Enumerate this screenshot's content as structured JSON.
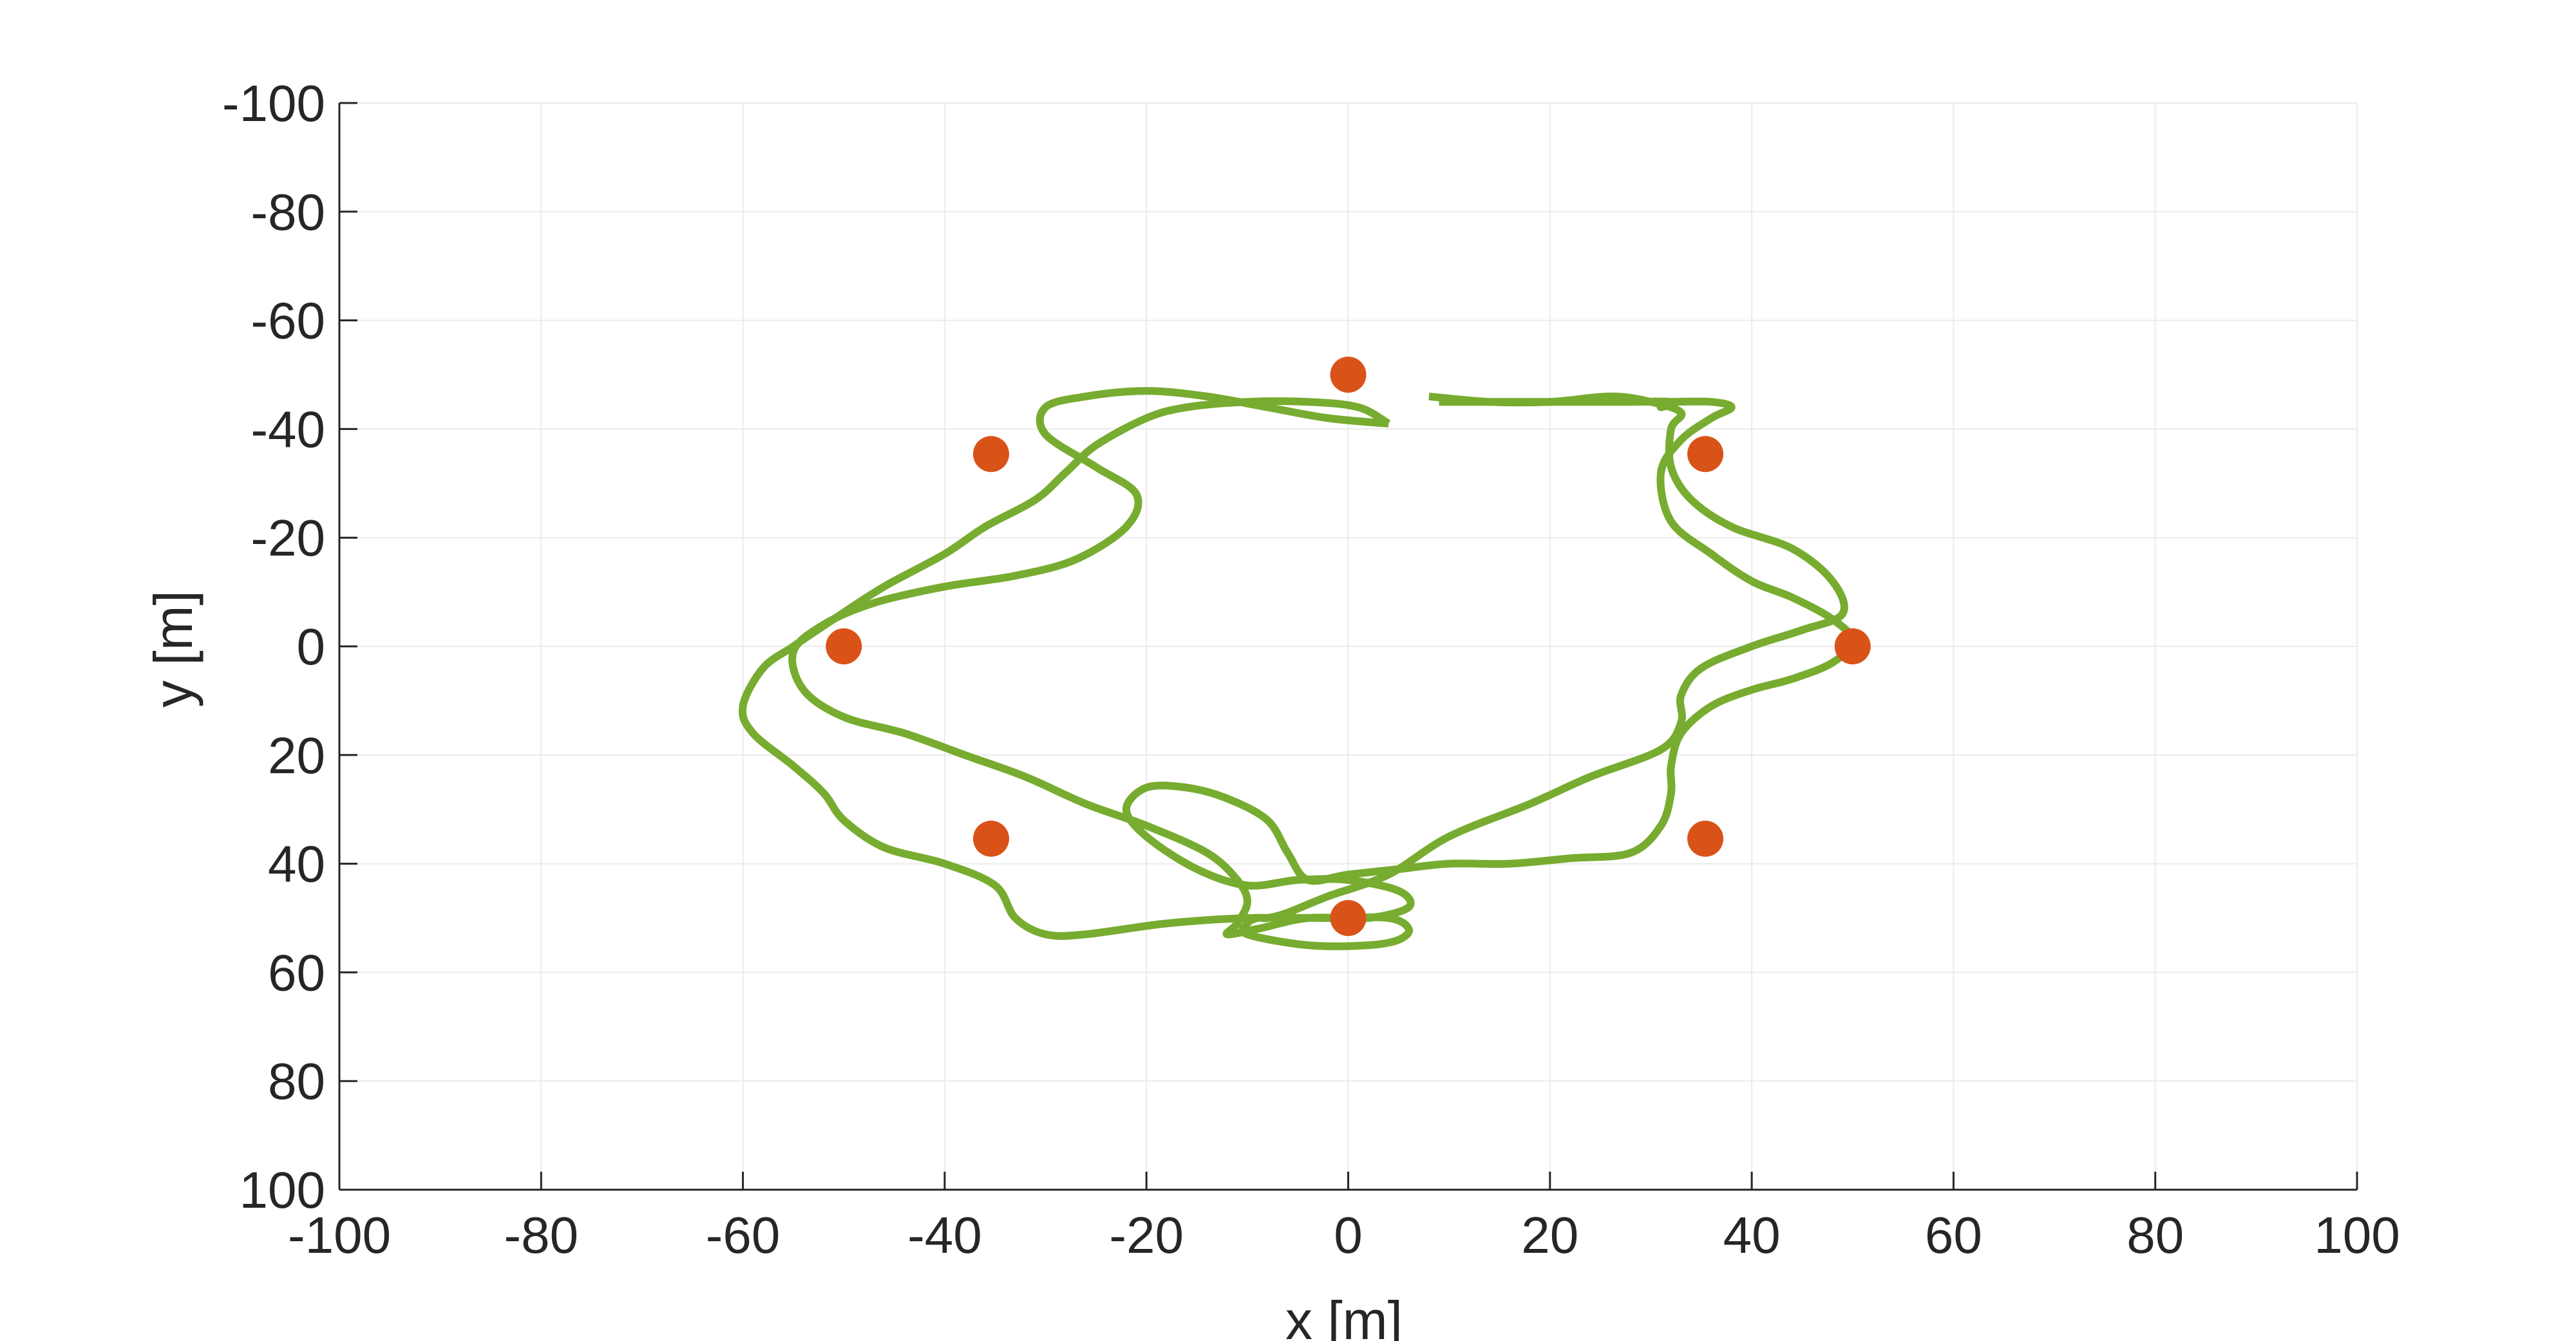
{
  "chart_data": {
    "type": "line",
    "xlabel": "x [m]",
    "ylabel": "y [m]",
    "xlim": [
      -100,
      100
    ],
    "ylim": [
      -100,
      100
    ],
    "y_direction": "reversed",
    "grid": true,
    "xticks": [
      -100,
      -80,
      -60,
      -40,
      -20,
      0,
      20,
      40,
      60,
      80,
      100
    ],
    "yticks": [
      -100,
      -80,
      -60,
      -40,
      -20,
      0,
      20,
      40,
      60,
      80,
      100
    ],
    "xtick_labels": [
      "-100",
      "-80",
      "-60",
      "-40",
      "-20",
      "0",
      "20",
      "40",
      "60",
      "80",
      "100"
    ],
    "ytick_labels": [
      "-100",
      "-80",
      "-60",
      "-40",
      "-20",
      "0",
      "20",
      "40",
      "60",
      "80",
      "100"
    ],
    "colors": {
      "trajectory": "#77ac30",
      "waypoints": "#d95319",
      "grid": "#ebebeb",
      "axes": "#262626"
    },
    "series": [
      {
        "type": "line",
        "x": [
          4,
          -2,
          -8,
          -14,
          -20,
          -26,
          -30,
          -30,
          -25,
          -21,
          -22,
          -27,
          -33,
          -40,
          -47,
          -52,
          -55,
          -54,
          -50,
          -44,
          -38,
          -32,
          -26,
          -20,
          -14,
          -11,
          -10,
          -11,
          -12,
          -9,
          -4,
          2,
          6,
          5,
          0,
          -5,
          -10,
          -15,
          -20,
          -22,
          -20,
          -16,
          -12,
          -8,
          -6,
          -4,
          0,
          5,
          10,
          16,
          22,
          28,
          31,
          32,
          32,
          33,
          36,
          40,
          44,
          48,
          50,
          48,
          44,
          40,
          36,
          32,
          31,
          33,
          36,
          38,
          36,
          32,
          30,
          31,
          31,
          32,
          28,
          22,
          16,
          10,
          9
        ],
        "y": [
          -41,
          -42,
          -44,
          -46,
          -47,
          -46,
          -44,
          -39,
          -33,
          -28,
          -22,
          -16,
          -13,
          -11,
          -8,
          -4,
          1,
          8,
          13,
          16,
          20,
          24,
          29,
          33,
          38,
          43,
          47,
          51,
          53,
          52,
          50,
          50,
          48,
          45,
          43,
          43,
          44,
          41,
          35,
          30,
          26,
          26,
          28,
          32,
          38,
          43,
          42,
          41,
          40,
          40,
          39,
          38,
          33,
          27,
          22,
          16,
          11,
          8,
          6,
          3,
          -1,
          -5,
          -9,
          -12,
          -17,
          -23,
          -32,
          -38,
          -42,
          -44,
          -45,
          -45,
          -45,
          -45,
          -44,
          -45,
          -45,
          -45,
          -45,
          -45,
          -45
        ]
      },
      {
        "type": "line",
        "x": [
          8,
          14,
          20,
          26,
          30,
          33,
          32,
          32,
          34,
          38,
          44,
          48,
          49,
          45,
          40,
          35,
          33,
          33,
          31,
          24,
          18,
          10,
          4,
          -2,
          -6,
          -8,
          -9,
          -10,
          -10,
          -4,
          2,
          5,
          6,
          4,
          -2,
          -10,
          -18,
          -26,
          -30,
          -33,
          -35,
          -40,
          -46,
          -50,
          -52,
          -55,
          -59,
          -60,
          -58,
          -55,
          -51,
          -46,
          -40,
          -36,
          -31,
          -28,
          -25,
          -20,
          -16,
          -10,
          -4,
          1,
          4
        ],
        "y": [
          -46,
          -45,
          -45,
          -46,
          -45,
          -43,
          -40,
          -33,
          -27,
          -22,
          -18,
          -12,
          -6,
          -3,
          0,
          4,
          9,
          14,
          19,
          24,
          29,
          35,
          42,
          46,
          49,
          50,
          50,
          51,
          53,
          55,
          55,
          54,
          52,
          50,
          50,
          50,
          51,
          53,
          53,
          50,
          44,
          40,
          37,
          32,
          27,
          22,
          16,
          11,
          4,
          0,
          -5,
          -11,
          -17,
          -22,
          -27,
          -32,
          -37,
          -42,
          -44,
          -45,
          -45,
          -44,
          -41
        ]
      }
    ],
    "waypoints": {
      "type": "scatter",
      "x": [
        0,
        35.4,
        50,
        35.4,
        0,
        -35.4,
        -50,
        -35.4
      ],
      "y": [
        -50,
        -35.4,
        0,
        35.4,
        50,
        35.4,
        0,
        -35.4
      ]
    }
  }
}
